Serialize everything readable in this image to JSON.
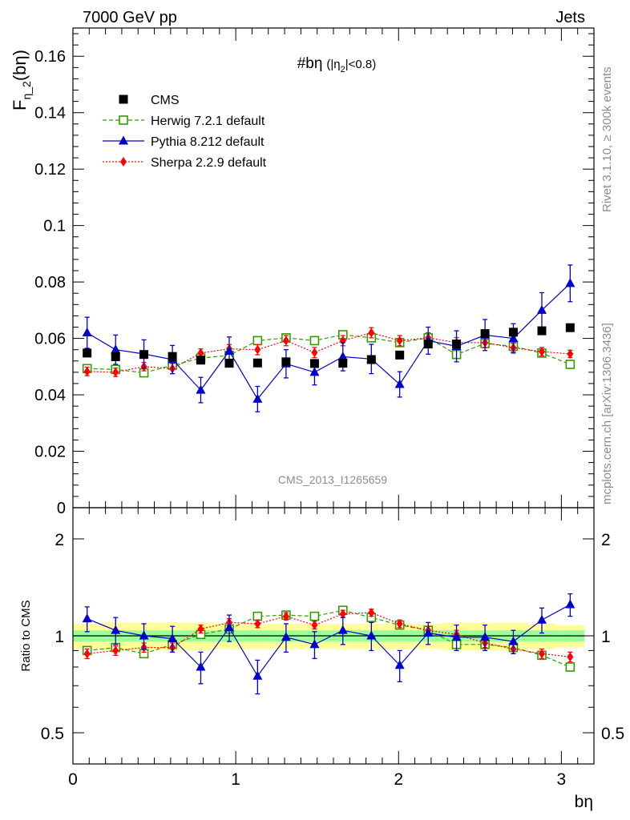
{
  "header": {
    "left_label": "7000 GeV pp",
    "right_label": "Jets",
    "title_main": "#bη",
    "title_cut_open": "(|η",
    "title_cut_sub": "2",
    "title_cut_close": "|<0.8)",
    "analysis_id": "CMS_2013_I1265659",
    "side_rivet": "Rivet 3.1.10, ≥ 300k events",
    "side_mcplots": "mcplots.cern.ch [arXiv:1306.3436]"
  },
  "colors": {
    "cms": "#000000",
    "herwig": "#339900",
    "pythia": "#0000cc",
    "sherpa": "#ff0000",
    "band_inner": "#99ff99",
    "band_outer": "#ffff99"
  },
  "chart_data": [
    {
      "type": "scatter",
      "panel": "main",
      "ylabel_main": "F",
      "ylabel_sub": "η_2",
      "ylabel_tail": "(bη)",
      "xlim": [
        0,
        3.2
      ],
      "ylim": [
        0,
        0.17
      ],
      "yticks": [
        0,
        0.02,
        0.04,
        0.06,
        0.08,
        0.1,
        0.12,
        0.14,
        0.16
      ],
      "ytick_labels": [
        "0",
        "0.02",
        "0.04",
        "0.06",
        "0.08",
        "0.1",
        "0.12",
        "0.14",
        "0.16"
      ],
      "x": [
        0.087,
        0.262,
        0.436,
        0.611,
        0.785,
        0.96,
        1.134,
        1.309,
        1.484,
        1.658,
        1.833,
        2.007,
        2.182,
        2.356,
        2.531,
        2.705,
        2.88,
        3.054
      ],
      "series": [
        {
          "name": "CMS",
          "key": "cms",
          "marker": "square",
          "values": [
            0.0548,
            0.0535,
            0.0543,
            0.0536,
            0.0523,
            0.0512,
            0.0513,
            0.0517,
            0.0511,
            0.0512,
            0.0525,
            0.0541,
            0.058,
            0.058,
            0.0617,
            0.0622,
            0.0627,
            0.0638
          ]
        },
        {
          "name": "Herwig 7.2.1 default",
          "key": "herwig",
          "marker": "open-square",
          "line": "dashed",
          "values": [
            0.0493,
            0.049,
            0.0478,
            0.0505,
            0.053,
            0.054,
            0.0592,
            0.0602,
            0.0592,
            0.0613,
            0.0602,
            0.0585,
            0.0602,
            0.0543,
            0.0582,
            0.0572,
            0.0548,
            0.0508
          ]
        },
        {
          "name": "Pythia 8.212 default",
          "key": "pythia",
          "marker": "triangle",
          "line": "solid",
          "values": [
            0.062,
            0.056,
            0.0545,
            0.0525,
            0.0417,
            0.0555,
            0.0385,
            0.051,
            0.048,
            0.0535,
            0.0527,
            0.0437,
            0.0592,
            0.0572,
            0.0612,
            0.06,
            0.07,
            0.0795
          ],
          "errors": [
            0.0055,
            0.0052,
            0.005,
            0.005,
            0.0045,
            0.005,
            0.0045,
            0.005,
            0.0045,
            0.005,
            0.0052,
            0.0045,
            0.0048,
            0.0055,
            0.0055,
            0.0052,
            0.0062,
            0.0065
          ]
        },
        {
          "name": "Sherpa 2.2.9 default",
          "key": "sherpa",
          "marker": "diamond",
          "line": "dotted",
          "values": [
            0.0483,
            0.048,
            0.05,
            0.0493,
            0.0548,
            0.0563,
            0.056,
            0.0592,
            0.055,
            0.0592,
            0.062,
            0.0592,
            0.0602,
            0.0585,
            0.0585,
            0.0567,
            0.0553,
            0.0545
          ],
          "errors": [
            0.0015,
            0.0015,
            0.0015,
            0.0018,
            0.0015,
            0.0015,
            0.0018,
            0.0018,
            0.0018,
            0.0018,
            0.0018,
            0.0018,
            0.0018,
            0.0018,
            0.0018,
            0.0015,
            0.0015,
            0.0013
          ]
        }
      ]
    },
    {
      "type": "scatter",
      "panel": "ratio",
      "ylabel": "Ratio to CMS",
      "xlabel": "bη",
      "log_y": true,
      "xlim": [
        0,
        3.2
      ],
      "ylim": [
        0.4,
        2.5
      ],
      "yticks": [
        0.5,
        1,
        2
      ],
      "ytick_labels": [
        "0.5",
        "1",
        "2"
      ],
      "xticks": [
        0,
        1,
        2,
        3
      ],
      "xtick_labels": [
        "0",
        "1",
        "2",
        "3"
      ],
      "x": [
        0.087,
        0.262,
        0.436,
        0.611,
        0.785,
        0.96,
        1.134,
        1.309,
        1.484,
        1.658,
        1.833,
        2.007,
        2.182,
        2.356,
        2.531,
        2.705,
        2.88,
        3.054
      ],
      "band_inner": [
        0.04,
        0.04,
        0.04,
        0.04,
        0.04,
        0.04,
        0.04,
        0.04,
        0.04,
        0.04,
        0.04,
        0.04,
        0.04,
        0.04,
        0.04,
        0.04,
        0.04,
        0.04
      ],
      "band_outer": [
        0.09,
        0.1,
        0.1,
        0.1,
        0.1,
        0.09,
        0.09,
        0.09,
        0.09,
        0.09,
        0.09,
        0.09,
        0.09,
        0.1,
        0.1,
        0.1,
        0.09,
        0.08
      ],
      "series": [
        {
          "key": "herwig",
          "marker": "open-square",
          "line": "dashed",
          "values": [
            0.9,
            0.92,
            0.88,
            0.94,
            1.01,
            1.05,
            1.15,
            1.16,
            1.15,
            1.2,
            1.14,
            1.08,
            1.04,
            0.94,
            0.94,
            0.92,
            0.87,
            0.8
          ]
        },
        {
          "key": "pythia",
          "marker": "triangle",
          "line": "solid",
          "values": [
            1.13,
            1.04,
            1.0,
            0.98,
            0.8,
            1.06,
            0.75,
            0.99,
            0.94,
            1.04,
            1.0,
            0.81,
            1.02,
            0.99,
            0.99,
            0.96,
            1.12,
            1.25
          ],
          "errors": [
            0.1,
            0.1,
            0.09,
            0.09,
            0.09,
            0.1,
            0.09,
            0.1,
            0.09,
            0.1,
            0.1,
            0.09,
            0.08,
            0.09,
            0.09,
            0.08,
            0.1,
            0.1
          ]
        },
        {
          "key": "sherpa",
          "marker": "diamond",
          "line": "dotted",
          "values": [
            0.88,
            0.9,
            0.92,
            0.92,
            1.05,
            1.1,
            1.09,
            1.15,
            1.08,
            1.17,
            1.18,
            1.09,
            1.04,
            1.01,
            0.95,
            0.91,
            0.88,
            0.86
          ],
          "errors": [
            0.03,
            0.03,
            0.03,
            0.03,
            0.03,
            0.03,
            0.03,
            0.03,
            0.03,
            0.03,
            0.03,
            0.03,
            0.03,
            0.03,
            0.03,
            0.03,
            0.03,
            0.03
          ]
        }
      ]
    }
  ]
}
